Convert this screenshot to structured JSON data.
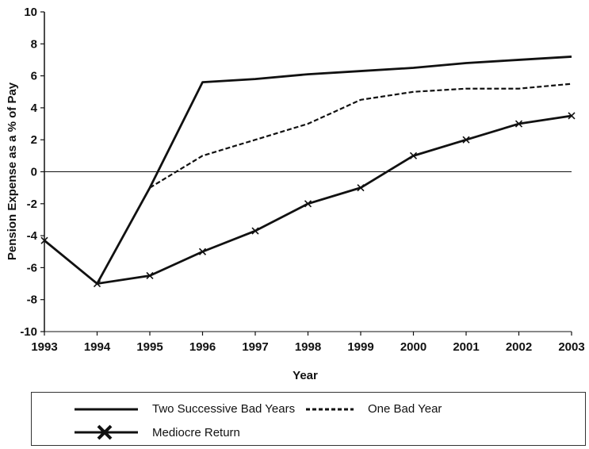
{
  "chart_data": {
    "type": "line",
    "title": "",
    "xlabel": "Year",
    "ylabel": "Pension Expense as a % of Pay",
    "x": [
      "1993",
      "1994",
      "1995",
      "1996",
      "1997",
      "1998",
      "1999",
      "2000",
      "2001",
      "2002",
      "2003"
    ],
    "xlim": [
      1993,
      2003
    ],
    "ylim": [
      -10,
      10
    ],
    "yticks": [
      "10",
      "8",
      "6",
      "4",
      "2",
      "0",
      "-2",
      "-4",
      "-6",
      "-8",
      "-10"
    ],
    "grid": false,
    "legend_position": "bottom",
    "series": [
      {
        "name": "Two Successive Bad Years",
        "style": "solid",
        "x": [
          1994,
          1995,
          1996,
          1997,
          1998,
          1999,
          2000,
          2001,
          2002,
          2003
        ],
        "values": [
          -7.0,
          -1.0,
          5.6,
          5.8,
          6.1,
          6.3,
          6.5,
          6.8,
          7.0,
          7.2
        ]
      },
      {
        "name": "One Bad Year",
        "style": "dashed",
        "x": [
          1995,
          1996,
          1997,
          1998,
          1999,
          2000,
          2001,
          2002,
          2003
        ],
        "values": [
          -1.0,
          1.0,
          2.0,
          3.0,
          4.5,
          5.0,
          5.2,
          5.2,
          5.5
        ]
      },
      {
        "name": "Mediocre Return",
        "style": "solid-x-markers",
        "x": [
          1993,
          1994,
          1995,
          1996,
          1997,
          1998,
          1999,
          2000,
          2001,
          2002,
          2003
        ],
        "values": [
          -4.3,
          -7.0,
          -6.5,
          -5.0,
          -3.7,
          -2.0,
          -1.0,
          1.0,
          2.0,
          3.0,
          3.5
        ]
      }
    ]
  },
  "colors": {
    "line": "#111111"
  }
}
